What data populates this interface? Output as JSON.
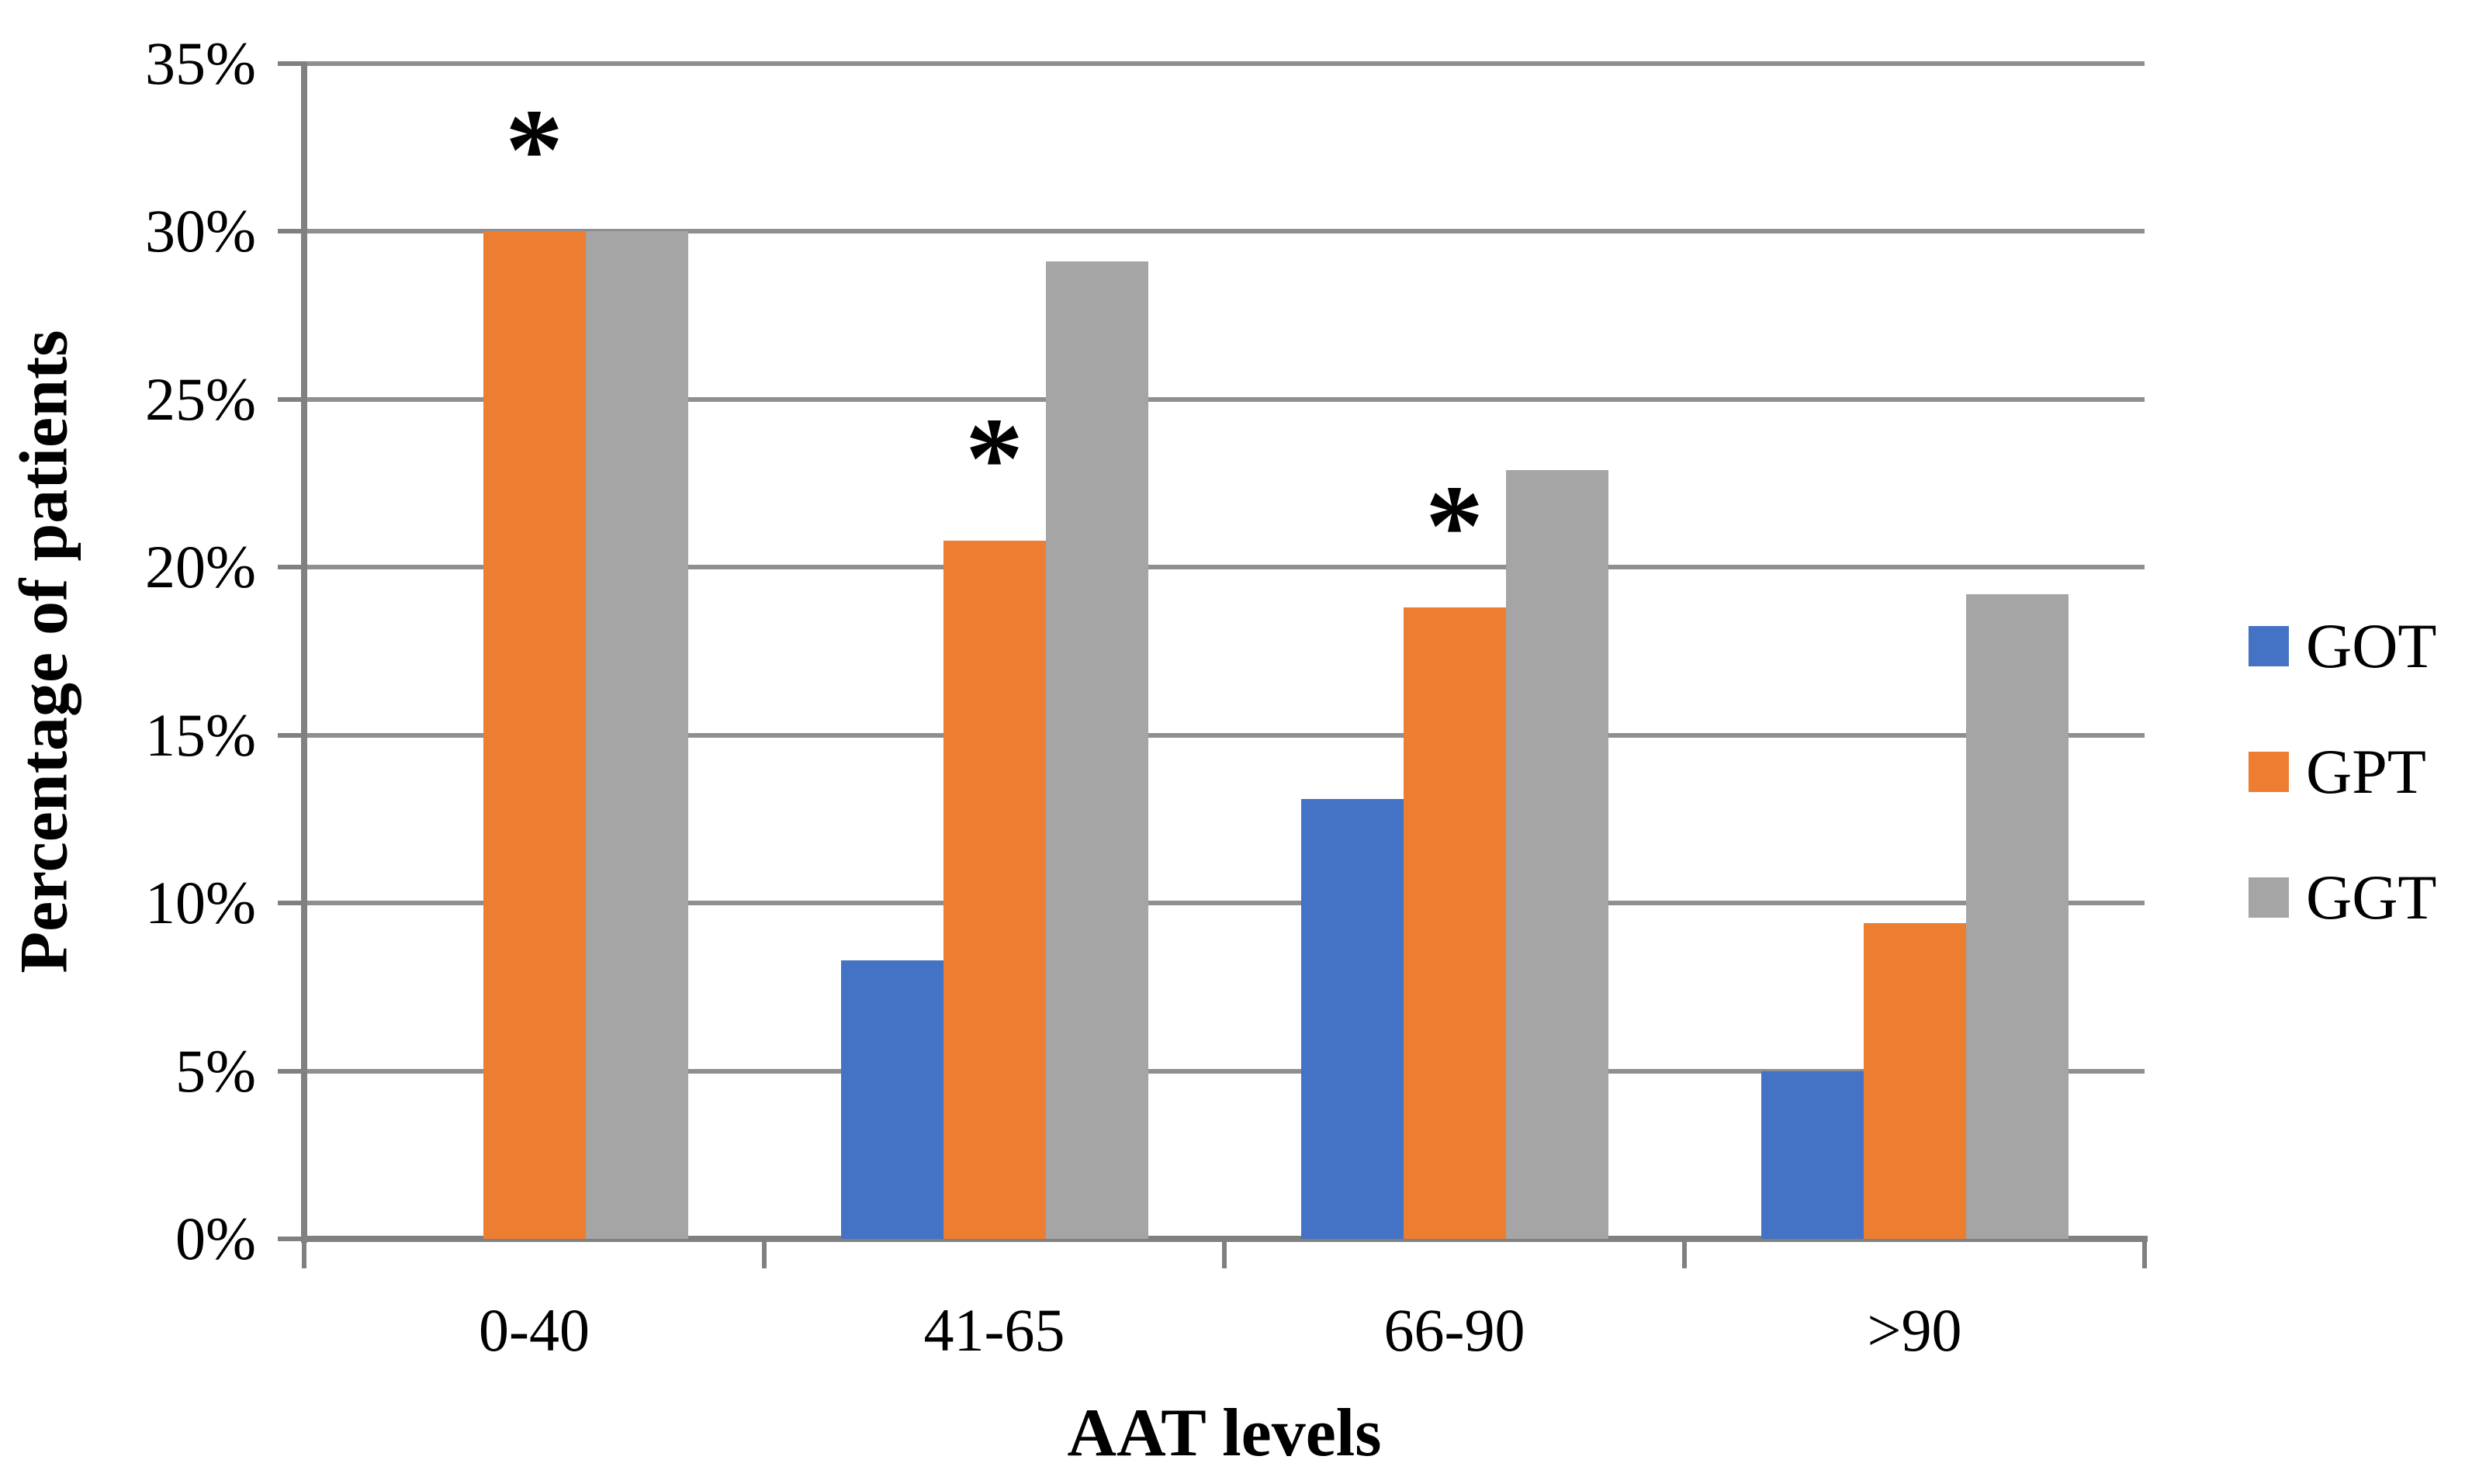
{
  "chart_data": {
    "type": "bar",
    "title": "",
    "categories": [
      "0-40",
      "41-65",
      "66-90",
      ">90"
    ],
    "series": [
      {
        "name": "GOT",
        "color": "#4472C4",
        "values": [
          0,
          8.3,
          13.1,
          5.0
        ]
      },
      {
        "name": "GPT",
        "color": "#ED7D31",
        "values": [
          30.0,
          20.8,
          18.8,
          9.4
        ]
      },
      {
        "name": "GGT",
        "color": "#A5A5A5",
        "values": [
          30.0,
          29.1,
          22.9,
          19.2
        ]
      }
    ],
    "annotations": [
      {
        "symbol": "*",
        "category_index": 0,
        "series": "GPT",
        "y_value": 33.1
      },
      {
        "symbol": "*",
        "category_index": 1,
        "series": "GPT",
        "y_value": 23.9
      },
      {
        "symbol": "*",
        "category_index": 2,
        "series": "GPT",
        "y_value": 21.9
      }
    ],
    "xlabel": "AAT levels",
    "ylabel": "Percentage of patients",
    "ylim": [
      0,
      35
    ],
    "ytick_step": 5,
    "yticks": [
      "0%",
      "5%",
      "10%",
      "15%",
      "20%",
      "25%",
      "30%",
      "35%"
    ],
    "grid": true,
    "legend_position": "right",
    "legend": [
      {
        "label": "GOT",
        "color": "#4472C4"
      },
      {
        "label": "GPT",
        "color": "#ED7D31"
      },
      {
        "label": "GGT",
        "color": "#A5A5A5"
      }
    ]
  }
}
